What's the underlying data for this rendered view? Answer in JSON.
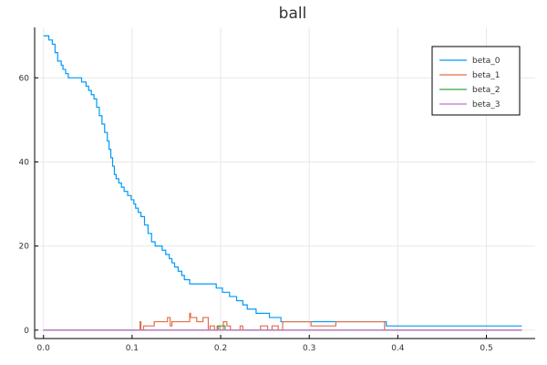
{
  "chart_data": {
    "type": "line",
    "title": "ball",
    "xlabel": "",
    "ylabel": "",
    "xlim": [
      -0.01,
      0.555
    ],
    "ylim": [
      -2.0,
      72.0
    ],
    "xticks": [
      0.0,
      0.1,
      0.2,
      0.3,
      0.4,
      0.5
    ],
    "xtick_labels": [
      "0.0",
      "0.1",
      "0.2",
      "0.3",
      "0.4",
      "0.5"
    ],
    "yticks": [
      0,
      20,
      40,
      60
    ],
    "ytick_labels": [
      "0",
      "20",
      "40",
      "60"
    ],
    "grid": true,
    "legend_position": "top-right",
    "step": true,
    "series": [
      {
        "name": "beta_0",
        "color": "#009AFA",
        "x": [
          0.0,
          0.006,
          0.01,
          0.013,
          0.016,
          0.02,
          0.022,
          0.025,
          0.028,
          0.032,
          0.036,
          0.04,
          0.043,
          0.048,
          0.051,
          0.054,
          0.057,
          0.06,
          0.063,
          0.066,
          0.069,
          0.072,
          0.074,
          0.076,
          0.078,
          0.08,
          0.082,
          0.085,
          0.088,
          0.091,
          0.095,
          0.099,
          0.102,
          0.104,
          0.107,
          0.11,
          0.114,
          0.118,
          0.122,
          0.126,
          0.13,
          0.134,
          0.138,
          0.142,
          0.145,
          0.148,
          0.152,
          0.156,
          0.159,
          0.161,
          0.163,
          0.165,
          0.168,
          0.172,
          0.18,
          0.19,
          0.195,
          0.202,
          0.21,
          0.218,
          0.225,
          0.23,
          0.24,
          0.255,
          0.268,
          0.276,
          0.285,
          0.3,
          0.329,
          0.38,
          0.387,
          0.54
        ],
        "values": [
          70,
          69,
          68,
          66,
          64,
          63,
          62,
          61,
          60,
          60,
          60,
          60,
          59,
          58,
          57,
          56,
          55,
          53,
          51,
          49,
          47,
          45,
          43,
          41,
          39,
          37,
          36,
          35,
          34,
          33,
          32,
          31,
          30,
          29,
          28,
          27,
          25,
          23,
          21,
          20,
          20,
          19,
          18,
          17,
          16,
          15,
          14,
          13,
          12,
          12,
          12,
          11,
          11,
          11,
          11,
          11,
          10,
          9,
          8,
          7,
          6,
          5,
          4,
          3,
          2,
          2,
          2,
          2,
          2,
          2,
          1,
          1
        ]
      },
      {
        "name": "beta_1",
        "color": "#E26F46",
        "x": [
          0.0,
          0.109,
          0.11,
          0.113,
          0.125,
          0.13,
          0.14,
          0.143,
          0.145,
          0.15,
          0.155,
          0.16,
          0.165,
          0.166,
          0.17,
          0.173,
          0.18,
          0.186,
          0.188,
          0.193,
          0.196,
          0.199,
          0.203,
          0.207,
          0.211,
          0.222,
          0.225,
          0.245,
          0.249,
          0.253,
          0.258,
          0.265,
          0.27,
          0.272,
          0.3,
          0.302,
          0.33,
          0.385,
          0.54
        ],
        "values": [
          0,
          2,
          0,
          1,
          2,
          2,
          3,
          1,
          2,
          2,
          2,
          2,
          4,
          3,
          3,
          2,
          3,
          0,
          1,
          0,
          1,
          0,
          2,
          1,
          0,
          1,
          0,
          1,
          1,
          0,
          1,
          0,
          2,
          2,
          2,
          1,
          2,
          0,
          0
        ]
      },
      {
        "name": "beta_2",
        "color": "#3EA44E",
        "x": [
          0.0,
          0.197,
          0.2,
          0.205,
          0.54
        ],
        "values": [
          0,
          1,
          1,
          0,
          0
        ]
      },
      {
        "name": "beta_3",
        "color": "#C271D2",
        "x": [
          0.0,
          0.54
        ],
        "values": [
          0,
          0
        ]
      }
    ]
  }
}
